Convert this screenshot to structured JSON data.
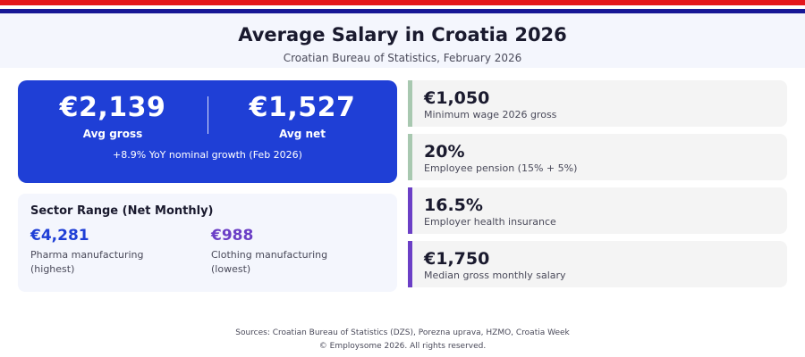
{
  "header": {
    "title": "Average Salary in Croatia 2026",
    "subtitle": "Croatian Bureau of Statistics, February 2026"
  },
  "hero": {
    "gross_value": "€2,139",
    "gross_label": "Avg gross",
    "net_value": "€1,527",
    "net_label": "Avg net",
    "growth": "+8.9% YoY nominal growth (Feb 2026)"
  },
  "sector": {
    "title": "Sector Range (Net Monthly)",
    "high": {
      "value": "€4,281",
      "desc": "Pharma manufacturing (highest)"
    },
    "low": {
      "value": "€988",
      "desc": "Clothing manufacturing (lowest)"
    }
  },
  "stats": [
    {
      "value": "€1,050",
      "desc": "Minimum wage 2026 gross",
      "accent": "green"
    },
    {
      "value": "20%",
      "desc": "Employee pension (15% + 5%)",
      "accent": "green"
    },
    {
      "value": "16.5%",
      "desc": "Employer health insurance",
      "accent": "purple"
    },
    {
      "value": "€1,750",
      "desc": "Median gross monthly salary",
      "accent": "purple"
    }
  ],
  "footer": {
    "sources": "Sources: Croatian Bureau of Statistics (DZS), Porezna uprava, HZMO, Croatia Week",
    "copyright": "© Employsome 2026. All rights reserved."
  },
  "colors": {
    "flag_red": "#e4151c",
    "flag_blue": "#171796",
    "hero_blue": "#1f3fd6",
    "accent_green": "#a8c8b0",
    "accent_purple": "#6b3fc6"
  }
}
